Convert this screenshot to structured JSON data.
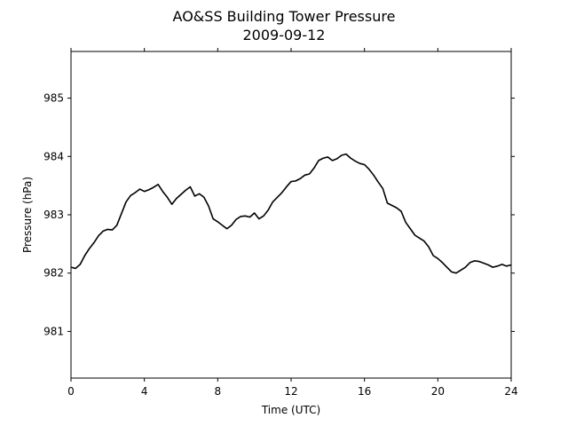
{
  "chart_data": {
    "type": "line",
    "title": "AO&SS Building Tower Pressure",
    "subtitle": "2009-09-12",
    "xlabel": "Time (UTC)",
    "ylabel": "Pressure (hPa)",
    "xlim": [
      0,
      24
    ],
    "ylim": [
      980.2,
      985.8
    ],
    "xticks": [
      0,
      4,
      8,
      12,
      16,
      20,
      24
    ],
    "yticks": [
      981,
      982,
      983,
      984,
      985
    ],
    "grid": false,
    "line_color": "#000000",
    "series": [
      {
        "x": [
          0,
          0.25,
          0.5,
          0.75,
          1.0,
          1.25,
          1.5,
          1.75,
          2.0,
          2.25,
          2.5,
          2.75,
          3.0,
          3.25,
          3.5,
          3.75,
          4.0,
          4.25,
          4.5,
          4.75,
          5.0,
          5.25,
          5.5,
          5.75,
          6.0,
          6.25,
          6.5,
          6.75,
          7.0,
          7.25,
          7.5,
          7.75,
          8.0,
          8.25,
          8.5,
          8.75,
          9.0,
          9.25,
          9.5,
          9.75,
          10.0,
          10.25,
          10.5,
          10.75,
          11.0,
          11.25,
          11.5,
          11.75,
          12.0,
          12.25,
          12.5,
          12.75,
          13.0,
          13.25,
          13.5,
          13.75,
          14.0,
          14.25,
          14.5,
          14.75,
          15.0,
          15.25,
          15.5,
          15.75,
          16.0,
          16.25,
          16.5,
          16.75,
          17.0,
          17.25,
          17.5,
          17.75,
          18.0,
          18.25,
          18.5,
          18.75,
          19.0,
          19.25,
          19.5,
          19.75,
          20.0,
          20.25,
          20.5,
          20.75,
          21.0,
          21.25,
          21.5,
          21.75,
          22.0,
          22.25,
          22.5,
          22.75,
          23.0,
          23.25,
          23.5,
          23.75,
          24.0
        ],
        "y": [
          982.1,
          982.08,
          982.15,
          982.3,
          982.42,
          982.52,
          982.64,
          982.72,
          982.75,
          982.74,
          982.82,
          983.02,
          983.22,
          983.33,
          983.38,
          983.44,
          983.4,
          983.43,
          983.47,
          983.52,
          983.4,
          983.3,
          983.18,
          983.28,
          983.35,
          983.42,
          983.48,
          983.32,
          983.36,
          983.3,
          983.15,
          982.93,
          982.88,
          982.82,
          982.76,
          982.82,
          982.92,
          982.97,
          982.98,
          982.96,
          983.03,
          982.93,
          982.98,
          983.08,
          983.22,
          983.3,
          983.38,
          983.48,
          983.57,
          983.58,
          983.62,
          983.68,
          983.7,
          983.8,
          983.93,
          983.97,
          983.99,
          983.93,
          983.96,
          984.02,
          984.04,
          983.97,
          983.92,
          983.88,
          983.86,
          983.78,
          983.68,
          983.56,
          983.45,
          983.2,
          983.16,
          983.12,
          983.06,
          982.87,
          982.76,
          982.65,
          982.6,
          982.55,
          982.45,
          982.3,
          982.25,
          982.18,
          982.1,
          982.02,
          982.0,
          982.05,
          982.1,
          982.18,
          982.21,
          982.2,
          982.17,
          982.14,
          982.1,
          982.12,
          982.15,
          982.12,
          982.14
        ]
      }
    ]
  }
}
